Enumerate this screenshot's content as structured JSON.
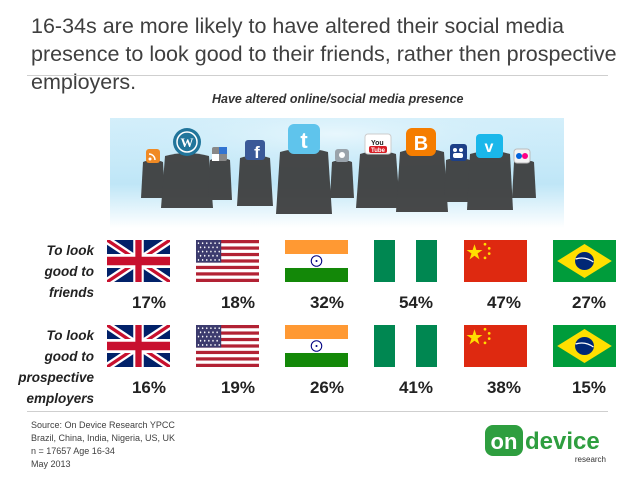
{
  "title": "16-34s are more likely to have altered their social media presence to look good to their friends, rather then prospective employers.",
  "subtitle": "Have altered online/social media presence",
  "banner_icons": [
    "rss-icon",
    "wordpress-icon",
    "delicious-icon",
    "facebook-icon",
    "twitter-icon",
    "digg-icon",
    "youtube-icon",
    "blogger-icon",
    "myspace-icon",
    "vimeo-icon",
    "flickr-icon"
  ],
  "chart_data": {
    "type": "table",
    "title": "Have altered online/social media presence",
    "categories": [
      "UK",
      "US",
      "India",
      "Nigeria",
      "China",
      "Brazil"
    ],
    "series": [
      {
        "name": "To look good to friends",
        "values": [
          17,
          18,
          32,
          54,
          47,
          27
        ]
      },
      {
        "name": "To look good to prospective employers",
        "values": [
          16,
          19,
          26,
          41,
          38,
          15
        ]
      }
    ],
    "row_labels": [
      "To look good to friends",
      "To look good to prospective employers"
    ],
    "value_labels": [
      [
        "17%",
        "18%",
        "32%",
        "54%",
        "47%",
        "27%"
      ],
      [
        "16%",
        "19%",
        "26%",
        "41%",
        "38%",
        "15%"
      ]
    ]
  },
  "source": {
    "line1": "Source: On Device Research YPCC",
    "line2": "Brazil, China, India, Nigeria, US, UK",
    "line3": "n = 17657 Age 16-34",
    "line4": "May 2013"
  },
  "logo": {
    "on_text": "on",
    "device_text": "device",
    "research_text": "research"
  },
  "colors": {
    "uk_blue": "#012169",
    "uk_red": "#C8102E",
    "us_red": "#B22234",
    "us_blue": "#3C3B6E",
    "india_saffron": "#FF9933",
    "india_green": "#138808",
    "nigeria_green": "#008751",
    "china_red": "#DE2910",
    "china_yellow": "#FFDE00",
    "brazil_green": "#009C3B",
    "brazil_yellow": "#FFDF00",
    "brazil_blue": "#002776",
    "logo_green": "#2e9e3f"
  }
}
